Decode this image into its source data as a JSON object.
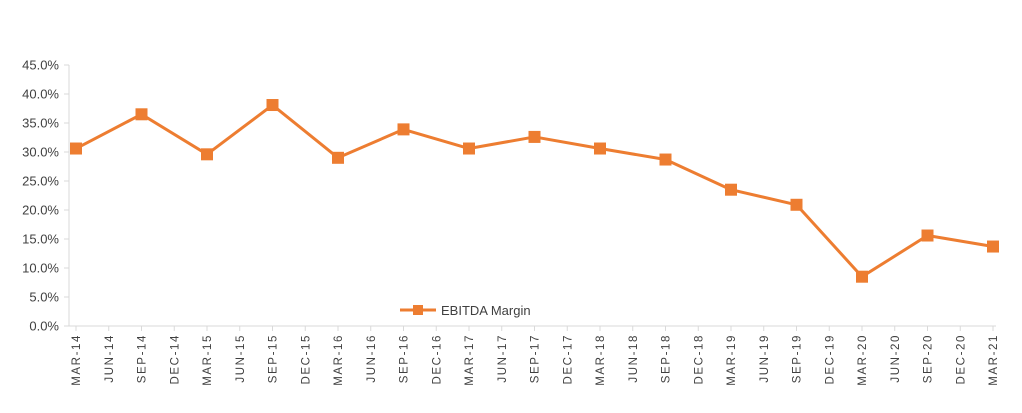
{
  "chart_data": {
    "type": "line",
    "title": "",
    "xlabel": "",
    "ylabel": "",
    "ylim": [
      0,
      45
    ],
    "y_ticks": [
      "0.0%",
      "5.0%",
      "10.0%",
      "15.0%",
      "20.0%",
      "25.0%",
      "30.0%",
      "35.0%",
      "40.0%",
      "45.0%"
    ],
    "y_tick_values": [
      0,
      5,
      10,
      15,
      20,
      25,
      30,
      35,
      40,
      45
    ],
    "categories": [
      "MAR-14",
      "JUN-14",
      "SEP-14",
      "DEC-14",
      "MAR-15",
      "JUN-15",
      "SEP-15",
      "DEC-15",
      "MAR-16",
      "JUN-16",
      "SEP-16",
      "DEC-16",
      "MAR-17",
      "JUN-17",
      "SEP-17",
      "DEC-17",
      "MAR-18",
      "JUN-18",
      "SEP-18",
      "DEC-18",
      "MAR-19",
      "JUN-19",
      "SEP-19",
      "DEC-19",
      "MAR-20",
      "JUN-20",
      "SEP-20",
      "DEC-20",
      "MAR-21"
    ],
    "grid": false,
    "legend_position": "bottom-center",
    "series": [
      {
        "name": "EBITDA Margin",
        "color": "#ED7D31",
        "marker": "square",
        "points": [
          {
            "x": "MAR-14",
            "y": 30.6
          },
          {
            "x": "SEP-14",
            "y": 36.5
          },
          {
            "x": "MAR-15",
            "y": 29.6
          },
          {
            "x": "SEP-15",
            "y": 38.1
          },
          {
            "x": "MAR-16",
            "y": 29.0
          },
          {
            "x": "SEP-16",
            "y": 33.9
          },
          {
            "x": "MAR-17",
            "y": 30.6
          },
          {
            "x": "SEP-17",
            "y": 32.6
          },
          {
            "x": "MAR-18",
            "y": 30.6
          },
          {
            "x": "SEP-18",
            "y": 28.7
          },
          {
            "x": "MAR-19",
            "y": 23.5
          },
          {
            "x": "SEP-19",
            "y": 20.9
          },
          {
            "x": "MAR-20",
            "y": 8.5
          },
          {
            "x": "SEP-20",
            "y": 15.6
          },
          {
            "x": "MAR-21",
            "y": 13.7
          }
        ]
      }
    ]
  },
  "colors": {
    "axis": "#D9D9D9",
    "text": "#404040",
    "series": "#ED7D31"
  }
}
